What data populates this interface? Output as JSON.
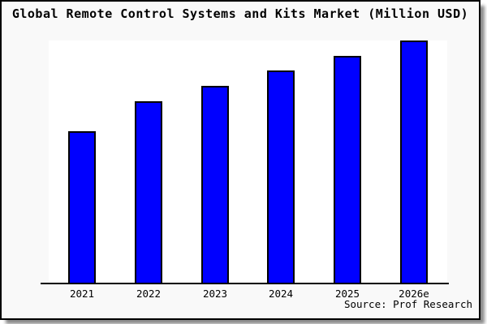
{
  "colors": {
    "bar_fill": "#0000ff",
    "bar_border": "#000000",
    "frame_background": "#f9f9f9",
    "plot_background": "#ffffff",
    "axis": "#000000",
    "shadow": "#8a8a8a",
    "text": "#000000"
  },
  "chart_data": {
    "type": "bar",
    "title": "Global Remote Control Systems and Kits Market (Million USD)",
    "categories": [
      "2021",
      "2022",
      "2023",
      "2024",
      "2025",
      "2026e"
    ],
    "values": [
      62.8,
      75.1,
      81.4,
      87.7,
      93.7,
      100
    ],
    "value_note": "No numeric y-axis shown in chart; values are relative bar heights with 2026e = 100",
    "xlabel": "",
    "ylabel": "",
    "ylim": [
      0,
      100
    ],
    "grid": false,
    "legend": false,
    "y_axis_visible": false,
    "bar_color": "#0000ff",
    "source": "Source: Prof Research"
  }
}
